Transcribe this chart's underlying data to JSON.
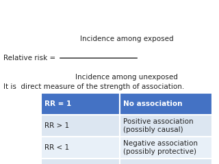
{
  "bg_color": "#ffffff",
  "title_line1": "Incidence among exposed",
  "title_line2": "Incidence among unexposed",
  "rr_label": "Relative risk = ",
  "body_text": "It is  direct measure of the strength of association.",
  "table": {
    "rows": [
      {
        "col1": "RR = 1",
        "col2": "No association",
        "header": true
      },
      {
        "col1": "RR > 1",
        "col2": "Positive association\n(possibly causal)",
        "header": false
      },
      {
        "col1": "RR < 1",
        "col2": "Negative association\n(possibly protective)",
        "header": false
      },
      {
        "col1": "",
        "col2": "",
        "header": false
      }
    ],
    "header_bg": "#4472c4",
    "header_fg": "#ffffff",
    "row_bg_light": "#dce6f1",
    "row_bg_lighter": "#e8f0f8"
  }
}
